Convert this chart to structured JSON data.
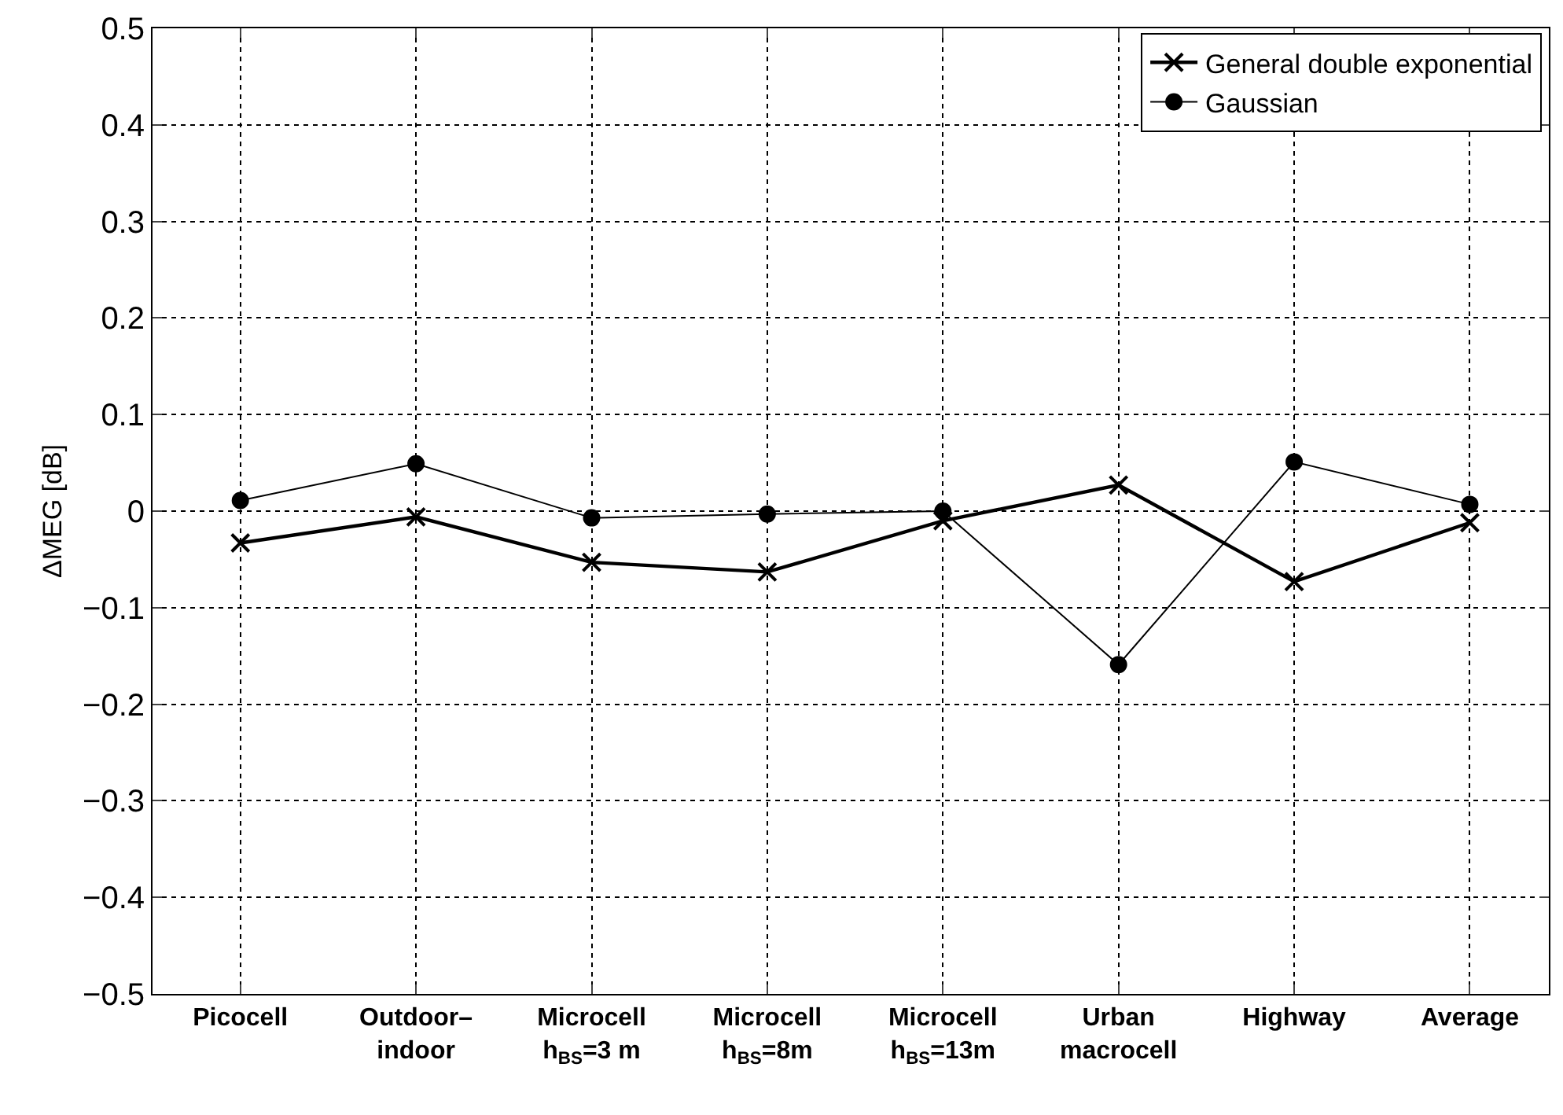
{
  "chart_data": {
    "type": "line",
    "ylabel": "ΔMEG [dB]",
    "categories": [
      "Picocell",
      "Outdoor–\nindoor",
      "Microcell\nh$_{BS}$=3 m",
      "Microcell\nh$_{BS}$=8m",
      "Microcell\nh$_{BS}$=13m",
      "Urban\nmacrocell",
      "Highway",
      "Average"
    ],
    "series": [
      {
        "name": "General double exponential",
        "color": "#000000",
        "marker": "cross",
        "values": [
          -0.033,
          -0.006,
          -0.053,
          -0.063,
          -0.01,
          0.027,
          -0.073,
          -0.012
        ]
      },
      {
        "name": "Gaussian",
        "color": "#000000",
        "marker": "circle",
        "values": [
          0.011,
          0.049,
          -0.007,
          -0.003,
          0.0,
          -0.159,
          0.051,
          0.007
        ]
      }
    ],
    "ylim": [
      -0.5,
      0.5
    ],
    "yticks": [
      {
        "value": -0.5,
        "label": "−0.5"
      },
      {
        "value": -0.4,
        "label": "−0.4"
      },
      {
        "value": -0.3,
        "label": "−0.3"
      },
      {
        "value": -0.2,
        "label": "−0.2"
      },
      {
        "value": -0.1,
        "label": "−0.1"
      },
      0,
      0.1,
      0.2,
      0.3,
      0.4,
      0.5
    ],
    "grid": true,
    "legend": "top right",
    "line_style": "solid"
  }
}
